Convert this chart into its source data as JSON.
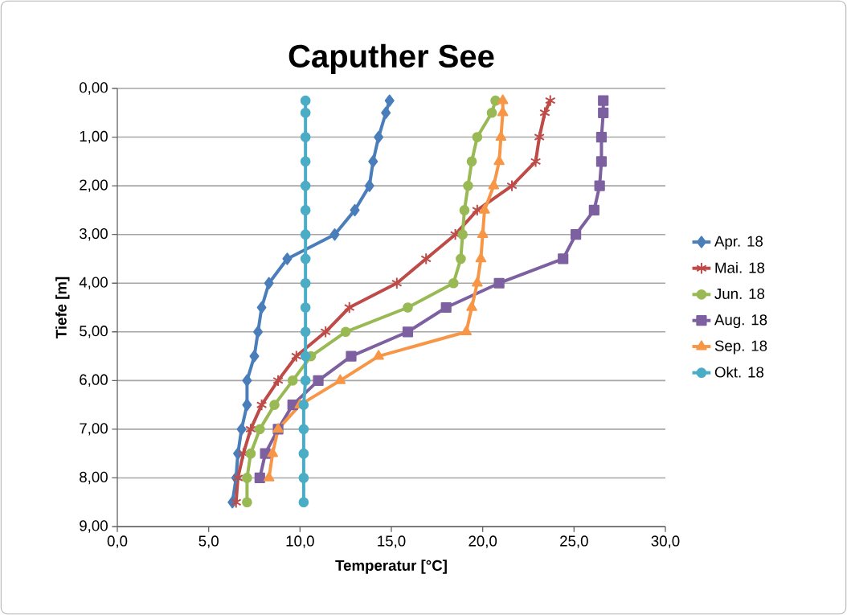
{
  "chart_data": {
    "type": "line",
    "title": "Caputher See",
    "xlabel": "Temperatur [°C]",
    "ylabel": "Tiefe [m]",
    "xlim": [
      0,
      30
    ],
    "ylim": [
      9,
      0
    ],
    "xticks": [
      {
        "value": 0,
        "label": "0,0"
      },
      {
        "value": 5,
        "label": "5,0"
      },
      {
        "value": 10,
        "label": "10,0"
      },
      {
        "value": 15,
        "label": "15,0"
      },
      {
        "value": 20,
        "label": "20,0"
      },
      {
        "value": 25,
        "label": "25,0"
      },
      {
        "value": 30,
        "label": "30,0"
      }
    ],
    "yticks": [
      {
        "value": 0,
        "label": "0,00"
      },
      {
        "value": 1,
        "label": "1,00"
      },
      {
        "value": 2,
        "label": "2,00"
      },
      {
        "value": 3,
        "label": "3,00"
      },
      {
        "value": 4,
        "label": "4,00"
      },
      {
        "value": 5,
        "label": "5,00"
      },
      {
        "value": 6,
        "label": "6,00"
      },
      {
        "value": 7,
        "label": "7,00"
      },
      {
        "value": 8,
        "label": "8,00"
      },
      {
        "value": 9,
        "label": "9,00"
      }
    ],
    "grid": "y",
    "legend": "right",
    "line_style": "solid",
    "series": [
      {
        "name": "Apr. 18",
        "color": "#4a7ebb",
        "marker": "diamond",
        "x": [
          14.9,
          14.7,
          14.3,
          14.0,
          13.8,
          13.0,
          11.9,
          9.3,
          8.3,
          7.9,
          7.7,
          7.5,
          7.1,
          7.1,
          6.8,
          6.6,
          6.5,
          6.3
        ],
        "values": [
          0.25,
          0.5,
          1.0,
          1.5,
          2.0,
          2.5,
          3.0,
          3.5,
          4.0,
          4.5,
          5.0,
          5.5,
          6.0,
          6.5,
          7.0,
          7.5,
          8.0,
          8.5
        ]
      },
      {
        "name": "Mai. 18",
        "color": "#be4b48",
        "marker": "cross",
        "x": [
          23.7,
          23.4,
          23.1,
          22.9,
          21.6,
          19.7,
          18.5,
          16.9,
          15.3,
          12.7,
          11.4,
          9.8,
          8.8,
          7.9,
          7.3,
          6.9,
          6.6,
          6.5
        ],
        "values": [
          0.25,
          0.5,
          1.0,
          1.5,
          2.0,
          2.5,
          3.0,
          3.5,
          4.0,
          4.5,
          5.0,
          5.5,
          6.0,
          6.5,
          7.0,
          7.5,
          8.0,
          8.5
        ]
      },
      {
        "name": "Jun. 18",
        "color": "#98b954",
        "marker": "circle",
        "x": [
          20.7,
          20.5,
          19.7,
          19.4,
          19.2,
          19.0,
          18.9,
          18.8,
          18.4,
          15.9,
          12.5,
          10.6,
          9.6,
          8.6,
          7.8,
          7.3,
          7.1,
          7.1
        ],
        "values": [
          0.25,
          0.5,
          1.0,
          1.5,
          2.0,
          2.5,
          3.0,
          3.5,
          4.0,
          4.5,
          5.0,
          5.5,
          6.0,
          6.5,
          7.0,
          7.5,
          8.0,
          8.5
        ]
      },
      {
        "name": "Aug. 18",
        "color": "#7d60a0",
        "marker": "square",
        "x": [
          26.6,
          26.6,
          26.5,
          26.5,
          26.4,
          26.1,
          25.1,
          24.4,
          20.9,
          18.0,
          15.9,
          12.8,
          11.0,
          9.6,
          8.8,
          8.1,
          7.8
        ],
        "values": [
          0.25,
          0.5,
          1.0,
          1.5,
          2.0,
          2.5,
          3.0,
          3.5,
          4.0,
          4.5,
          5.0,
          5.5,
          6.0,
          6.5,
          7.0,
          7.5,
          8.0
        ]
      },
      {
        "name": "Sep. 18",
        "color": "#f79646",
        "marker": "triangle",
        "x": [
          21.1,
          21.1,
          21.0,
          20.9,
          20.6,
          20.1,
          20.0,
          19.9,
          19.7,
          19.4,
          19.1,
          14.3,
          12.2,
          10.0,
          8.8,
          8.5,
          8.3
        ],
        "values": [
          0.25,
          0.5,
          1.0,
          1.5,
          2.0,
          2.5,
          3.0,
          3.5,
          4.0,
          4.5,
          5.0,
          5.5,
          6.0,
          6.5,
          7.0,
          7.5,
          8.0
        ]
      },
      {
        "name": "Okt. 18",
        "color": "#4bacc6",
        "marker": "circle",
        "x": [
          10.3,
          10.3,
          10.3,
          10.3,
          10.3,
          10.3,
          10.3,
          10.3,
          10.3,
          10.3,
          10.3,
          10.3,
          10.3,
          10.2,
          10.2,
          10.2,
          10.2,
          10.2
        ],
        "values": [
          0.25,
          0.5,
          1.0,
          1.5,
          2.0,
          2.5,
          3.0,
          3.5,
          4.0,
          4.5,
          5.0,
          5.5,
          6.0,
          6.5,
          7.0,
          7.5,
          8.0,
          8.5
        ]
      }
    ]
  }
}
